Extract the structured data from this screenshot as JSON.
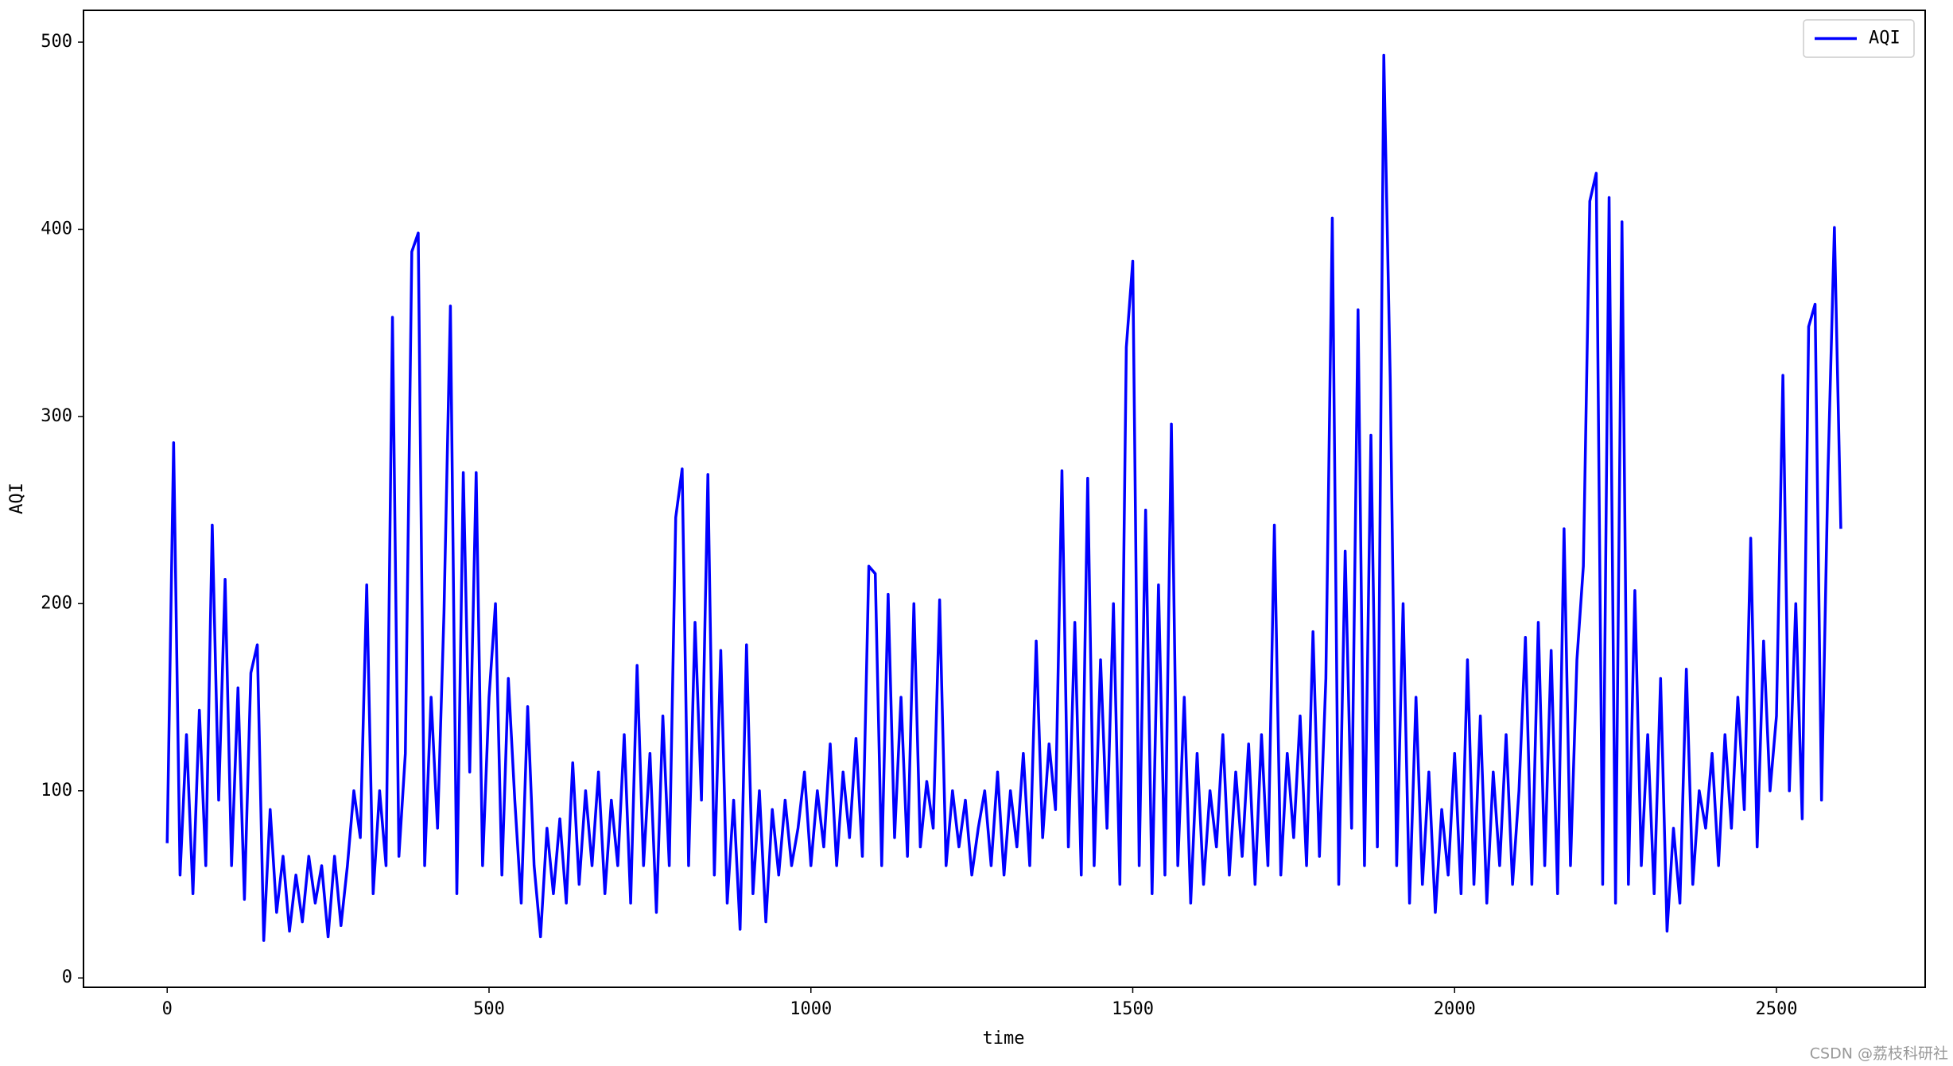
{
  "chart_data": {
    "type": "line",
    "xlabel": "time",
    "ylabel": "AQI",
    "x": [
      0,
      10,
      20,
      30,
      40,
      50,
      60,
      70,
      80,
      90,
      100,
      110,
      120,
      130,
      140,
      150,
      160,
      170,
      180,
      190,
      200,
      210,
      220,
      230,
      240,
      250,
      260,
      270,
      280,
      290,
      300,
      310,
      320,
      330,
      340,
      350,
      360,
      370,
      380,
      390,
      400,
      410,
      420,
      430,
      440,
      450,
      460,
      470,
      480,
      490,
      500,
      510,
      520,
      530,
      540,
      550,
      560,
      570,
      580,
      590,
      600,
      610,
      620,
      630,
      640,
      650,
      660,
      670,
      680,
      690,
      700,
      710,
      720,
      730,
      740,
      750,
      760,
      770,
      780,
      790,
      800,
      810,
      820,
      830,
      840,
      850,
      860,
      870,
      880,
      890,
      900,
      910,
      920,
      930,
      940,
      950,
      960,
      970,
      980,
      990,
      1000,
      1010,
      1020,
      1030,
      1040,
      1050,
      1060,
      1070,
      1080,
      1090,
      1100,
      1110,
      1120,
      1130,
      1140,
      1150,
      1160,
      1170,
      1180,
      1190,
      1200,
      1210,
      1220,
      1230,
      1240,
      1250,
      1260,
      1270,
      1280,
      1290,
      1300,
      1310,
      1320,
      1330,
      1340,
      1350,
      1360,
      1370,
      1380,
      1390,
      1400,
      1410,
      1420,
      1430,
      1440,
      1450,
      1460,
      1470,
      1480,
      1490,
      1500,
      1510,
      1520,
      1530,
      1540,
      1550,
      1560,
      1570,
      1580,
      1590,
      1600,
      1610,
      1620,
      1630,
      1640,
      1650,
      1660,
      1670,
      1680,
      1690,
      1700,
      1710,
      1720,
      1730,
      1740,
      1750,
      1760,
      1770,
      1780,
      1790,
      1800,
      1810,
      1820,
      1830,
      1840,
      1850,
      1860,
      1870,
      1880,
      1890,
      1900,
      1910,
      1920,
      1930,
      1940,
      1950,
      1960,
      1970,
      1980,
      1990,
      2000,
      2010,
      2020,
      2030,
      2040,
      2050,
      2060,
      2070,
      2080,
      2090,
      2100,
      2110,
      2120,
      2130,
      2140,
      2150,
      2160,
      2170,
      2180,
      2190,
      2200,
      2210,
      2220,
      2230,
      2240,
      2250,
      2260,
      2270,
      2280,
      2290,
      2300,
      2310,
      2320,
      2330,
      2340,
      2350,
      2360,
      2370,
      2380,
      2390,
      2400,
      2410,
      2420,
      2430,
      2440,
      2450,
      2460,
      2470,
      2480,
      2490,
      2500,
      2510,
      2520,
      2530,
      2540,
      2550,
      2560,
      2570,
      2580,
      2590,
      2600
    ],
    "series": [
      {
        "name": "AQI",
        "color": "#0000ff",
        "values": [
          72,
          286,
          55,
          130,
          45,
          143,
          60,
          242,
          95,
          213,
          60,
          155,
          42,
          163,
          178,
          20,
          90,
          35,
          65,
          25,
          55,
          30,
          65,
          40,
          60,
          22,
          65,
          28,
          60,
          100,
          75,
          210,
          45,
          100,
          60,
          353,
          65,
          120,
          388,
          398,
          60,
          150,
          80,
          195,
          359,
          45,
          270,
          110,
          270,
          60,
          150,
          200,
          55,
          160,
          95,
          40,
          145,
          60,
          22,
          80,
          45,
          85,
          40,
          115,
          50,
          100,
          60,
          110,
          45,
          95,
          60,
          130,
          40,
          167,
          60,
          120,
          35,
          140,
          60,
          246,
          272,
          60,
          190,
          95,
          269,
          55,
          175,
          40,
          95,
          26,
          178,
          45,
          100,
          30,
          90,
          55,
          95,
          60,
          80,
          110,
          60,
          100,
          70,
          125,
          60,
          110,
          75,
          128,
          65,
          220,
          216,
          60,
          205,
          75,
          150,
          65,
          200,
          70,
          105,
          80,
          202,
          60,
          100,
          70,
          95,
          55,
          80,
          100,
          60,
          110,
          55,
          100,
          70,
          120,
          60,
          180,
          75,
          125,
          90,
          271,
          70,
          190,
          55,
          267,
          60,
          170,
          80,
          200,
          50,
          337,
          383,
          60,
          250,
          45,
          210,
          55,
          296,
          60,
          150,
          40,
          120,
          50,
          100,
          70,
          130,
          55,
          110,
          65,
          125,
          50,
          130,
          60,
          242,
          55,
          120,
          75,
          140,
          60,
          185,
          65,
          160,
          406,
          50,
          228,
          80,
          357,
          60,
          290,
          70,
          493,
          320,
          60,
          200,
          40,
          150,
          50,
          110,
          35,
          90,
          55,
          120,
          45,
          170,
          50,
          140,
          40,
          110,
          60,
          130,
          50,
          100,
          182,
          50,
          190,
          60,
          175,
          45,
          240,
          60,
          170,
          220,
          415,
          430,
          50,
          417,
          40,
          404,
          50,
          207,
          60,
          130,
          45,
          160,
          25,
          80,
          40,
          165,
          50,
          100,
          80,
          120,
          60,
          130,
          80,
          150,
          90,
          235,
          70,
          180,
          100,
          140,
          322,
          100,
          200,
          85,
          348,
          360,
          95,
          270,
          401,
          240
        ]
      }
    ],
    "xlim": [
      -130,
      2731
    ],
    "ylim": [
      -5,
      517
    ],
    "xticks": [
      0,
      500,
      1000,
      1500,
      2000,
      2500
    ],
    "yticks": [
      0,
      100,
      200,
      300,
      400,
      500
    ],
    "legend": "upper right",
    "watermark": "CSDN @荔枝科研社"
  }
}
